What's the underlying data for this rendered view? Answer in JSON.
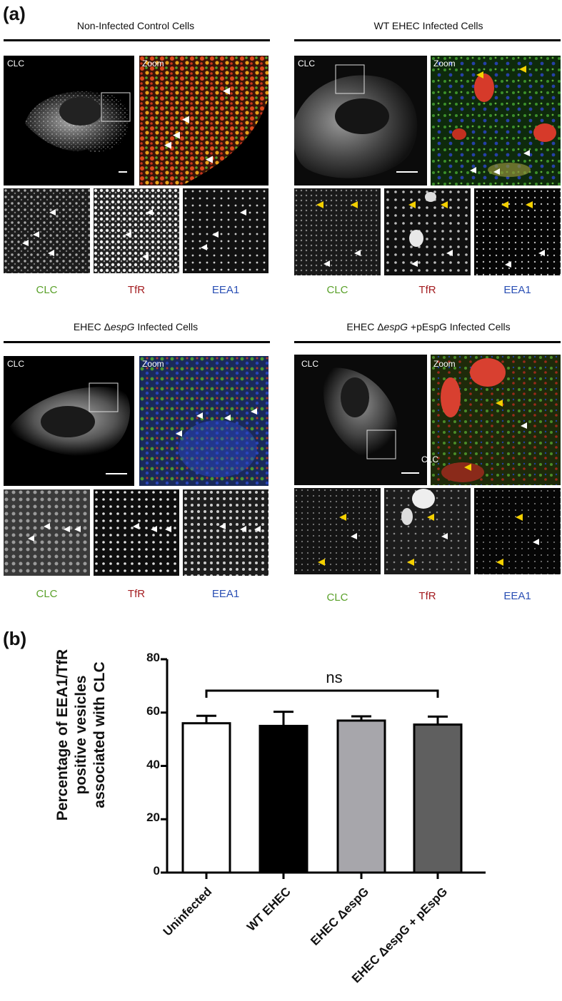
{
  "figure": {
    "panel_a_label": "(a)",
    "panel_b_label": "(b)"
  },
  "quadrants": [
    {
      "title_before": "Non-Infected Control Cells",
      "title_italic": "",
      "title_after": "",
      "image_label": "CLC",
      "zoom_label": "Zoom",
      "channels": [
        "CLC",
        "TfR",
        "EEA1"
      ]
    },
    {
      "title_before": "WT EHEC Infected Cells",
      "title_italic": "",
      "title_after": "",
      "image_label": "CLC",
      "zoom_label": "Zoom",
      "channels": [
        "CLC",
        "TfR",
        "EEA1"
      ]
    },
    {
      "title_before": "EHEC Δ",
      "title_italic": "espG",
      "title_after": " Infected Cells",
      "image_label": "CLC",
      "zoom_label": "Zoom",
      "channels": [
        "CLC",
        "TfR",
        "EEA1"
      ]
    },
    {
      "title_before": "EHEC Δ",
      "title_italic": "espG",
      "title_after": " +pEspG Infected Cells",
      "image_label": "CLC",
      "zoom_label": "Zoom",
      "zoom_extra_label": "CLC",
      "channels": [
        "CLC",
        "TfR",
        "EEA1"
      ]
    }
  ],
  "colors": {
    "clc_label": "#5aa12a",
    "tfr_label": "#a41e22",
    "eea1_label": "#2a4fb4",
    "white_arrow": "#ffffff",
    "yellow_arrow": "#f4d000"
  },
  "chart_data": {
    "type": "bar",
    "categories": [
      "Uninfected",
      "WT EHEC",
      "EHEC ΔespG",
      "EHEC ΔespG + pEspG"
    ],
    "values": [
      56,
      55,
      57,
      55.5
    ],
    "errors": [
      2.8,
      5.3,
      1.6,
      3.0
    ],
    "bar_colors": [
      "#ffffff",
      "#000000",
      "#a7a6ab",
      "#5f5f5f"
    ],
    "ylabel": "Percentage of EEA1/TfR positive vesicles associated with CLC",
    "ylabel_lines": [
      "Percentage of EEA1/TfR",
      "positive vesicles",
      "associated with CLC"
    ],
    "ylim": [
      0,
      80
    ],
    "yticks": [
      0,
      20,
      40,
      60,
      80
    ],
    "significance": {
      "label": "ns",
      "from": 0,
      "to": 3
    },
    "grid": false
  }
}
